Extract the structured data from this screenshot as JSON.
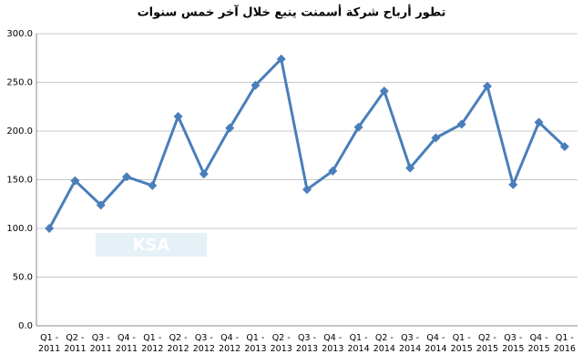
{
  "chart_data": {
    "type": "line",
    "title": "تطور أرباح شركة أسمنت ينبع خلال آخر خمس سنوات",
    "watermark": "KSA",
    "categories": [
      "Q1 - 2011",
      "Q2 - 2011",
      "Q3 - 2011",
      "Q4 - 2011",
      "Q1 - 2012",
      "Q2 - 2012",
      "Q3 - 2012",
      "Q4 - 2012",
      "Q1 - 2013",
      "Q2 - 2013",
      "Q3 - 2013",
      "Q4 - 2013",
      "Q1 - 2014",
      "Q2 - 2014",
      "Q3 - 2014",
      "Q4 - 2014",
      "Q1 - 2015",
      "Q2 - 2015",
      "Q3 - 2015",
      "Q4 - 2015",
      "Q1 - 2016"
    ],
    "series": [
      {
        "color": "#4a7ebb",
        "values": [
          100,
          149,
          124,
          153,
          144,
          215,
          156,
          203,
          247,
          274,
          140,
          159,
          204,
          241,
          162,
          193,
          207,
          246,
          145,
          209,
          184
        ]
      }
    ],
    "ylim": [
      0,
      300
    ],
    "yticks": [
      {
        "value": 0,
        "label": "0.0"
      },
      {
        "value": 50,
        "label": "50.0"
      },
      {
        "value": 100,
        "label": "100.0"
      },
      {
        "value": 150,
        "label": "150.0"
      },
      {
        "value": 200,
        "label": "200.0"
      },
      {
        "value": 250,
        "label": "250.0"
      },
      {
        "value": 300,
        "label": "300.0"
      }
    ],
    "grid": true
  }
}
